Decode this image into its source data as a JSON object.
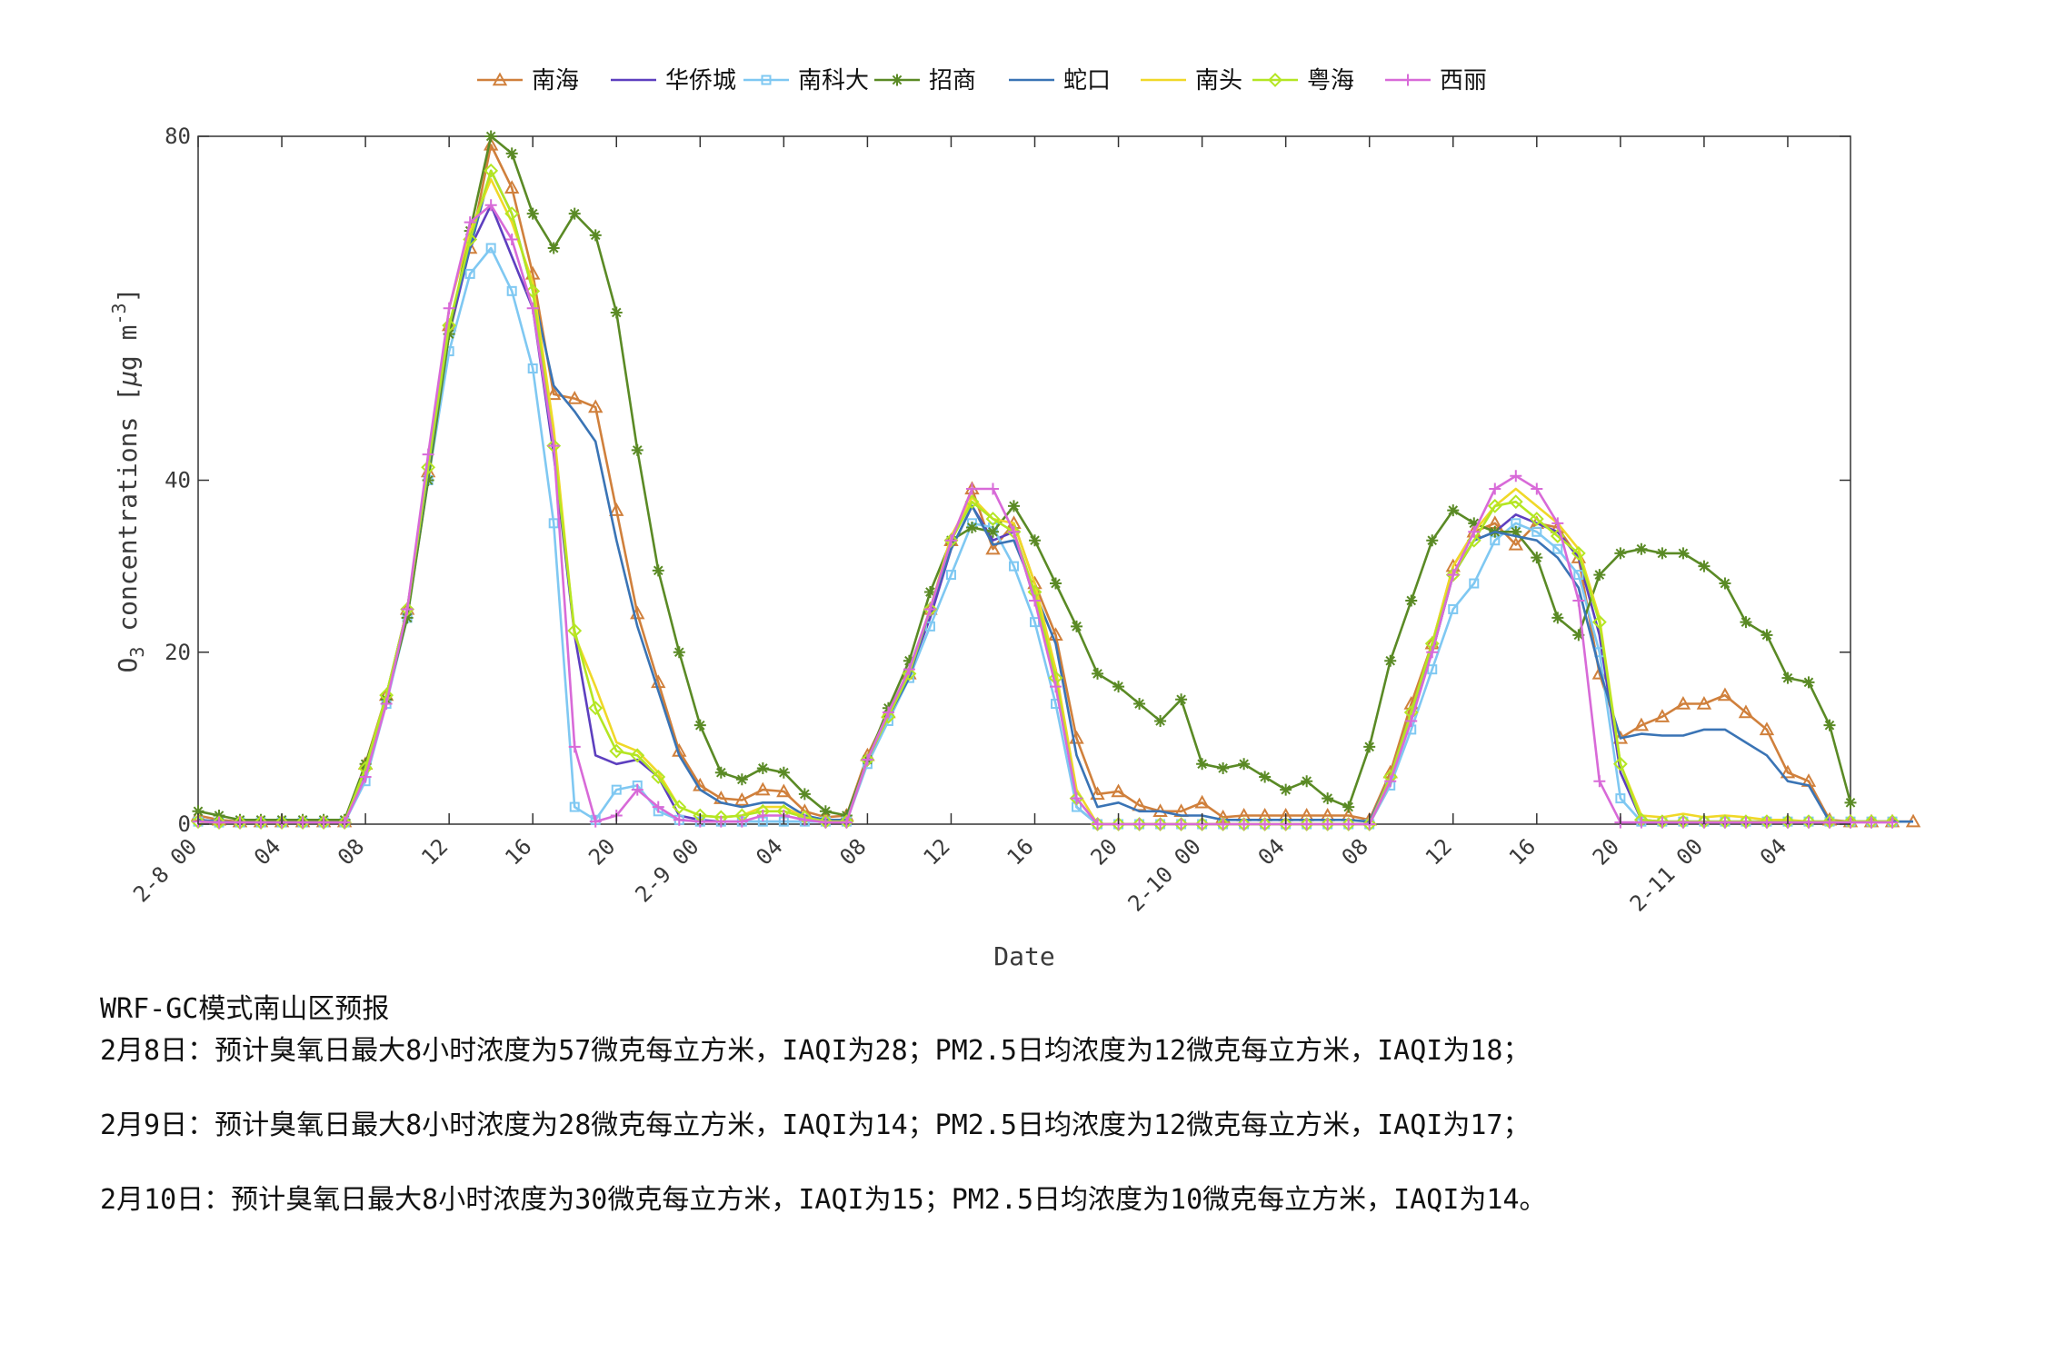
{
  "chart_data": {
    "type": "line",
    "xlabel": "Date",
    "ylabel": "O3 concentrations [μg m-3]",
    "ylabel_parts": {
      "a": "O",
      "sub": "3",
      "b": " concentrations [",
      "mu": "μ",
      "c": "g m",
      "sup": "-3",
      "d": "]"
    },
    "ylim": [
      0,
      80
    ],
    "yticks": [
      0,
      20,
      40,
      80
    ],
    "xlim": [
      0,
      79
    ],
    "x_unit": "hour",
    "xticks": [
      {
        "x": 0,
        "label": "2-8 00"
      },
      {
        "x": 4,
        "label": "04"
      },
      {
        "x": 8,
        "label": "08"
      },
      {
        "x": 12,
        "label": "12"
      },
      {
        "x": 16,
        "label": "16"
      },
      {
        "x": 20,
        "label": "20"
      },
      {
        "x": 24,
        "label": "2-9 00"
      },
      {
        "x": 28,
        "label": "04"
      },
      {
        "x": 32,
        "label": "08"
      },
      {
        "x": 36,
        "label": "12"
      },
      {
        "x": 40,
        "label": "16"
      },
      {
        "x": 44,
        "label": "20"
      },
      {
        "x": 48,
        "label": "2-10 00"
      },
      {
        "x": 52,
        "label": "04"
      },
      {
        "x": 56,
        "label": "08"
      },
      {
        "x": 60,
        "label": "12"
      },
      {
        "x": 64,
        "label": "16"
      },
      {
        "x": 68,
        "label": "20"
      },
      {
        "x": 72,
        "label": "2-11 00"
      },
      {
        "x": 76,
        "label": "04"
      }
    ],
    "legend_position": "top",
    "grid": false,
    "series": [
      {
        "name": "南海",
        "color": "#d0803c",
        "marker": "triangle",
        "values": [
          1,
          0.5,
          0.3,
          0.3,
          0.3,
          0.3,
          0.3,
          0.3,
          7,
          15,
          25,
          41,
          58,
          67,
          79,
          74,
          64,
          50,
          49.5,
          48.5,
          36.5,
          24.5,
          16.5,
          8.5,
          4.5,
          3,
          2.8,
          4,
          3.8,
          1.5,
          0.8,
          1,
          8,
          13,
          17.5,
          25,
          33,
          39,
          32,
          35,
          28,
          22,
          10,
          3.5,
          3.8,
          2.2,
          1.5,
          1.5,
          2.5,
          0.8,
          1,
          1,
          1,
          1,
          1,
          1,
          0.5,
          6,
          14,
          21,
          30,
          34,
          35,
          32.5,
          35,
          34.5,
          31,
          17.5,
          10,
          11.5,
          12.5,
          14,
          14,
          15,
          13,
          11,
          6,
          5,
          0.5,
          0.3,
          0.3,
          0.3,
          0.3
        ]
      },
      {
        "name": "华侨城",
        "color": "#5d3fbf",
        "marker": "none",
        "values": [
          0.5,
          0.3,
          0.2,
          0.2,
          0.2,
          0.2,
          0.2,
          0.2,
          6,
          15,
          25,
          41,
          57,
          67,
          72,
          66,
          60,
          43,
          22,
          8,
          7,
          7.5,
          5.5,
          1,
          0.5,
          0.3,
          0.3,
          0.3,
          0.3,
          0.3,
          0.3,
          0.3,
          7.5,
          12.5,
          17.5,
          24,
          32,
          37,
          33,
          34,
          26,
          18,
          2,
          0,
          0,
          0,
          0,
          0,
          0,
          0,
          0,
          0,
          0,
          0,
          0,
          0,
          0,
          5,
          13,
          20,
          29,
          33,
          34,
          36,
          35,
          34,
          31,
          22,
          6,
          0.5,
          0.3,
          0.3,
          0.3,
          0.3,
          0.3,
          0.3,
          0.3,
          0.3,
          0.3,
          0.3,
          0.3,
          0.3
        ]
      },
      {
        "name": "南科大",
        "color": "#7fc8f2",
        "marker": "square",
        "values": [
          0.3,
          0.2,
          0.2,
          0.2,
          0.2,
          0.2,
          0.2,
          0.2,
          5,
          14,
          24,
          40,
          55,
          64,
          67,
          62,
          53,
          35,
          2,
          0.5,
          4,
          4.5,
          1.5,
          0.5,
          0.3,
          0.3,
          0.3,
          0.3,
          0.3,
          0.3,
          0.3,
          0.3,
          7,
          12,
          17,
          23,
          29,
          35,
          34.5,
          30,
          23.5,
          14,
          2,
          0,
          0,
          0,
          0,
          0,
          0,
          0,
          0,
          0,
          0,
          0,
          0,
          0,
          0,
          4.5,
          11,
          18,
          25,
          28,
          33,
          35,
          34,
          32,
          29,
          20,
          3,
          0.3,
          0.3,
          0.3,
          0.3,
          0.3,
          0.3,
          0.3,
          0.3,
          0.3,
          0.3,
          0.3,
          0.3,
          0.3
        ]
      },
      {
        "name": "招商",
        "color": "#5a8a25",
        "marker": "star",
        "values": [
          1.5,
          1,
          0.5,
          0.5,
          0.5,
          0.5,
          0.5,
          0.5,
          7,
          14.5,
          24,
          40,
          57,
          69,
          80,
          78,
          71,
          67,
          71,
          68.5,
          59.5,
          43.5,
          29.5,
          20,
          11.5,
          6,
          5.2,
          6.5,
          6,
          3.5,
          1.5,
          1,
          7.5,
          13.5,
          19,
          27,
          33,
          34.5,
          34,
          37,
          33,
          28,
          23,
          17.5,
          16,
          14,
          12,
          14.5,
          7,
          6.5,
          7,
          5.5,
          4,
          5,
          3,
          2,
          9,
          19,
          26,
          33,
          36.5,
          35,
          34,
          34,
          31,
          24,
          22,
          29,
          31.5,
          32,
          31.5,
          31.5,
          30,
          28,
          23.5,
          22,
          17,
          16.5,
          11.5,
          2.5
        ]
      },
      {
        "name": "蛇口",
        "color": "#3a74b5",
        "marker": "none",
        "values": [
          0.5,
          0.3,
          0.2,
          0.2,
          0.2,
          0.2,
          0.2,
          0.2,
          6.5,
          15,
          25,
          41,
          58,
          67,
          76,
          71,
          62,
          51,
          48,
          44.5,
          33,
          23,
          15.5,
          8,
          4,
          2.5,
          2,
          2.5,
          2.5,
          1,
          0.5,
          0.5,
          7.5,
          12.5,
          17,
          25,
          32,
          37,
          32.5,
          33,
          27,
          21,
          8,
          2,
          2.5,
          1.5,
          1.5,
          1,
          1,
          0.5,
          0.5,
          0.5,
          0.5,
          0.5,
          0.5,
          0.5,
          0.3,
          5.5,
          13,
          20,
          29,
          33,
          34,
          33.5,
          33,
          31,
          27.5,
          18,
          10,
          10.5,
          10.3,
          10.3,
          11,
          11,
          9.5,
          8,
          5,
          4.5,
          0.3,
          0.3,
          0.3,
          0.3,
          0.3
        ]
      },
      {
        "name": "南头",
        "color": "#f0d828",
        "marker": "none",
        "values": [
          0.3,
          0.2,
          0.2,
          0.2,
          0.2,
          0.2,
          0.2,
          0.2,
          6.5,
          15,
          25,
          41.5,
          60,
          69,
          75,
          70,
          63,
          46,
          22,
          16,
          9.5,
          8.5,
          6,
          2,
          1,
          0.8,
          1,
          2,
          2,
          0.8,
          0.3,
          0.3,
          7.5,
          13,
          18,
          25,
          33.5,
          38,
          35.5,
          35,
          28,
          18,
          4,
          0,
          0,
          0,
          0,
          0,
          0,
          0,
          0,
          0,
          0,
          0,
          0,
          0,
          0,
          5,
          13,
          21,
          30,
          34,
          37,
          39,
          37,
          35,
          32,
          24,
          7,
          1,
          0.8,
          1.2,
          0.8,
          1,
          0.8,
          0.5,
          0.5,
          0.3,
          0.3,
          0.3,
          0.3,
          0.3
        ]
      },
      {
        "name": "粤海",
        "color": "#b4e623",
        "marker": "diamond",
        "values": [
          0.3,
          0.2,
          0.2,
          0.2,
          0.2,
          0.2,
          0.2,
          0.2,
          6.5,
          15,
          25,
          41.5,
          58,
          68,
          76,
          71,
          62,
          44,
          22.5,
          13.5,
          8.5,
          8,
          5.5,
          2,
          1,
          0.8,
          1,
          1.5,
          1.5,
          0.8,
          0.3,
          0.3,
          7.5,
          12.5,
          17.5,
          25,
          33,
          37.5,
          35.5,
          34,
          27,
          17,
          3,
          0,
          0,
          0,
          0,
          0,
          0,
          0,
          0,
          0,
          0,
          0,
          0,
          0,
          0,
          5.5,
          13,
          21,
          29,
          33,
          37,
          37.5,
          35.5,
          33.5,
          31.5,
          23.5,
          7,
          0.5,
          0.3,
          0.3,
          0.3,
          0.3,
          0.3,
          0.3,
          0.3,
          0.3,
          0.3,
          0.3,
          0.3,
          0.3
        ]
      },
      {
        "name": "西丽",
        "color": "#d86ad8",
        "marker": "plus",
        "values": [
          0.3,
          0.2,
          0.2,
          0.2,
          0.2,
          0.2,
          0.2,
          0.2,
          5.5,
          14,
          25,
          43,
          60,
          70,
          72,
          68,
          60,
          44,
          9,
          0.3,
          1,
          4,
          2,
          0.5,
          0.3,
          0.3,
          0.3,
          1,
          1,
          0.5,
          0.2,
          0.2,
          7.5,
          13,
          18,
          25,
          33,
          39,
          39,
          34,
          26,
          16,
          3,
          0,
          0,
          0,
          0,
          0,
          0,
          0,
          0,
          0,
          0,
          0,
          0,
          0,
          0,
          5,
          12,
          20,
          29,
          34,
          39,
          40.5,
          39,
          35,
          26,
          5,
          0.2,
          0.2,
          0.2,
          0.2,
          0.2,
          0.2,
          0.2,
          0.2,
          0.2,
          0.2,
          0.2,
          0.2,
          0.2,
          0.2
        ]
      }
    ]
  },
  "notes": {
    "title": "WRF-GC模式南山区预报",
    "lines": [
      "2月8日：预计臭氧日最大8小时浓度为57微克每立方米，IAQI为28；PM2.5日均浓度为12微克每立方米，IAQI为18；",
      "2月9日：预计臭氧日最大8小时浓度为28微克每立方米，IAQI为14；PM2.5日均浓度为12微克每立方米，IAQI为17；",
      "2月10日：预计臭氧日最大8小时浓度为30微克每立方米，IAQI为15；PM2.5日均浓度为10微克每立方米，IAQI为14。"
    ]
  }
}
